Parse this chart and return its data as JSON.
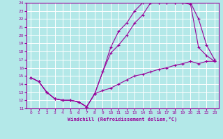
{
  "xlabel": "Windchill (Refroidissement éolien,°C)",
  "bg_color": "#b3e8e8",
  "line_color": "#990099",
  "grid_color": "#ffffff",
  "xlim": [
    -0.5,
    23.5
  ],
  "ylim": [
    11,
    24
  ],
  "xticks": [
    0,
    1,
    2,
    3,
    4,
    5,
    6,
    7,
    8,
    9,
    10,
    11,
    12,
    13,
    14,
    15,
    16,
    17,
    18,
    19,
    20,
    21,
    22,
    23
  ],
  "yticks": [
    11,
    12,
    13,
    14,
    15,
    16,
    17,
    18,
    19,
    20,
    21,
    22,
    23,
    24
  ],
  "line1_x": [
    0,
    1,
    2,
    3,
    4,
    5,
    6,
    7,
    8,
    9,
    10,
    11,
    12,
    13,
    14,
    15,
    16,
    17,
    18,
    19,
    20,
    21,
    22,
    23
  ],
  "line1_y": [
    14.8,
    14.3,
    13.0,
    12.2,
    12.0,
    12.0,
    11.8,
    11.2,
    12.8,
    15.5,
    18.5,
    20.5,
    21.5,
    23.0,
    24.0,
    24.0,
    24.0,
    24.0,
    24.0,
    24.0,
    24.0,
    22.0,
    18.8,
    17.0
  ],
  "line2_x": [
    0,
    1,
    2,
    3,
    4,
    5,
    6,
    7,
    8,
    9,
    10,
    11,
    12,
    13,
    14,
    15,
    16,
    17,
    18,
    19,
    20,
    21,
    22,
    23
  ],
  "line2_y": [
    14.8,
    14.3,
    13.0,
    12.2,
    12.0,
    12.0,
    11.8,
    11.2,
    12.8,
    15.5,
    17.8,
    18.8,
    20.0,
    21.5,
    22.5,
    24.0,
    24.0,
    24.0,
    24.0,
    24.0,
    23.8,
    18.5,
    17.5,
    16.8
  ],
  "line3_x": [
    0,
    1,
    2,
    3,
    4,
    5,
    6,
    7,
    8,
    9,
    10,
    11,
    12,
    13,
    14,
    15,
    16,
    17,
    18,
    19,
    20,
    21,
    22,
    23
  ],
  "line3_y": [
    14.8,
    14.3,
    13.0,
    12.2,
    12.0,
    12.0,
    11.8,
    11.2,
    12.8,
    13.2,
    13.5,
    14.0,
    14.5,
    15.0,
    15.2,
    15.5,
    15.8,
    16.0,
    16.3,
    16.5,
    16.8,
    16.5,
    16.8,
    16.8
  ]
}
